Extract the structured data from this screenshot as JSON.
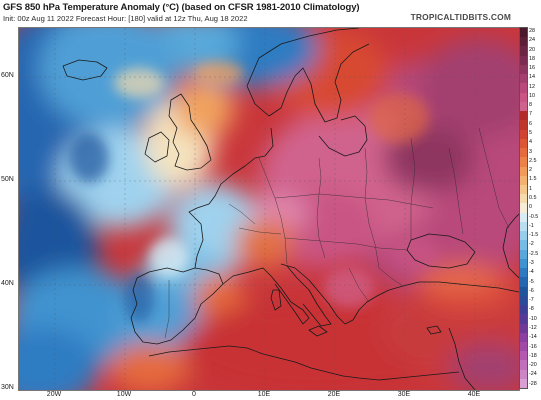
{
  "header": {
    "title": "GFS 850 hPa Temperature Anomaly (°C) (based on CFSR 1981-2010 Climatology)",
    "subtitle": "Init: 00z Aug 11 2022   Forecast Hour: [180]   valid at 12z Thu, Aug 18 2022",
    "brand": "TROPICALTIDBITS.COM"
  },
  "map": {
    "lat_labels": [
      "60N",
      "50N",
      "40N",
      "30N"
    ],
    "lon_labels": [
      "20W",
      "10W",
      "0",
      "10E",
      "20E",
      "30E",
      "40E"
    ]
  },
  "colorbar": {
    "labels": [
      "28",
      "24",
      "20",
      "18",
      "16",
      "14",
      "12",
      "10",
      "8",
      "7",
      "6",
      "5",
      "4",
      "3",
      "2.5",
      "2",
      "1.5",
      "1",
      "0.5",
      "0",
      "-0.5",
      "-1",
      "-1.5",
      "-2",
      "-2.5",
      "-3",
      "-4",
      "-5",
      "-6",
      "-7",
      "-8",
      "-10",
      "-12",
      "-14",
      "-16",
      "-18",
      "-20",
      "-24",
      "-28"
    ],
    "colors": [
      "#4a1a2c",
      "#5c1f38",
      "#6b2545",
      "#7a2c52",
      "#8e3560",
      "#a3406f",
      "#b8497a",
      "#c95584",
      "#d0638e",
      "#b22a2a",
      "#c0352a",
      "#cf4330",
      "#dc5634",
      "#e56b3c",
      "#ec8248",
      "#f09b5a",
      "#f2b270",
      "#f4c78c",
      "#f6dcad",
      "#f7ecd6",
      "#d9ecf4",
      "#b8def0",
      "#95cdea",
      "#74bce3",
      "#58a9da",
      "#3f93cf",
      "#2f7bc2",
      "#2566b0",
      "#1d559d",
      "#2a4b9a",
      "#3b3f98",
      "#533a96",
      "#6d3a98",
      "#8a40a0",
      "#a04aa8",
      "#b35ab0",
      "#c06fbb",
      "#cc86c6",
      "#d8a0d3"
    ]
  }
}
